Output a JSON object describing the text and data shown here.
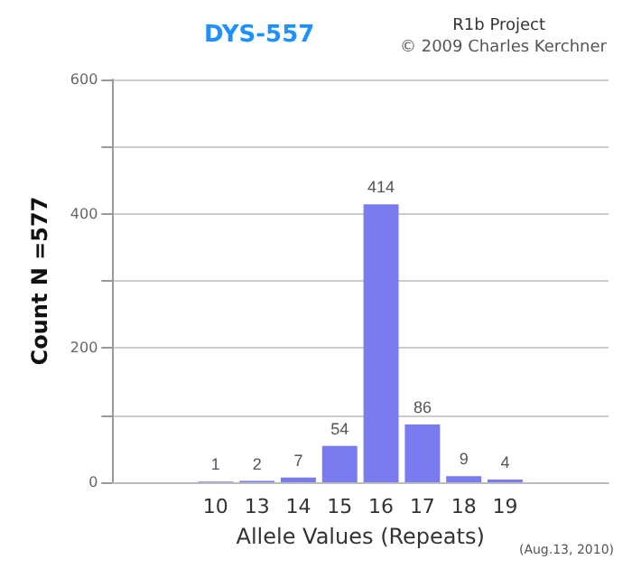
{
  "chart_data": {
    "type": "bar",
    "title": "DYS-557",
    "xlabel": "Allele Values (Repeats)",
    "ylabel": "Count N =577",
    "categories": [
      null,
      null,
      "10",
      "13",
      "14",
      "15",
      "16",
      "17",
      "18",
      "19",
      null,
      null
    ],
    "values": [
      null,
      null,
      1,
      2,
      7,
      54,
      414,
      86,
      9,
      4,
      null,
      null
    ],
    "color": "#7b7bf0",
    "data_labels": true,
    "ylim": [
      0,
      600
    ],
    "yticks": [
      0,
      {
        "value": 100,
        "label": null
      },
      200,
      {
        "value": 300,
        "label": null
      },
      400,
      {
        "value": 500,
        "label": null
      },
      600
    ],
    "grid": "y",
    "annotations": [
      "R1b Project",
      "© 2009 Charles Kerchner",
      "(Aug.13, 2010)"
    ]
  }
}
